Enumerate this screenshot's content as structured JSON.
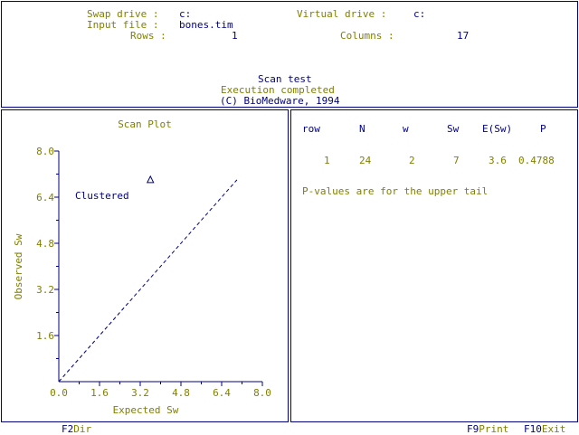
{
  "header": {
    "swap_drive_label": "Swap drive :",
    "swap_drive_value": "c:",
    "virtual_drive_label": "Virtual drive :",
    "virtual_drive_value": "c:",
    "input_file_label": "Input file :",
    "input_file_value": "bones.tim",
    "rows_label": "Rows :",
    "rows_value": "1",
    "columns_label": "Columns :",
    "columns_value": "17",
    "test_name": "Scan test",
    "status": "Execution completed",
    "copyright": "(C) BioMedware, 1994"
  },
  "results": {
    "headers": [
      "row",
      "N",
      "w",
      "Sw",
      "E(Sw)",
      "P"
    ],
    "row": [
      "1",
      "24",
      "2",
      "7",
      "3.6",
      "0.4788"
    ],
    "note": "P-values are for the upper tail"
  },
  "footer": {
    "dir_key": "F2",
    "dir_label": "Dir",
    "print_key": "F9",
    "print_label": "Print",
    "exit_key": "F10",
    "exit_label": "Exit"
  },
  "chart_data": {
    "type": "scatter",
    "title": "Scan Plot",
    "xlabel": "Expected Sw",
    "ylabel": "Observed Sw",
    "xlim": [
      0,
      8
    ],
    "ylim": [
      0,
      8
    ],
    "x_ticks": [
      "0.0",
      "1.6",
      "3.2",
      "4.8",
      "6.4",
      "8.0"
    ],
    "y_ticks": [
      "1.6",
      "3.2",
      "4.8",
      "6.4",
      "8.0"
    ],
    "points": [
      {
        "x": 3.6,
        "y": 7
      }
    ],
    "reference_line": {
      "from": [
        0,
        0
      ],
      "to": [
        7,
        7
      ],
      "style": "dashed"
    },
    "annotation": "Clustered",
    "colors": {
      "axis": "#000080",
      "labels": "#808000",
      "text": "#000080"
    }
  }
}
